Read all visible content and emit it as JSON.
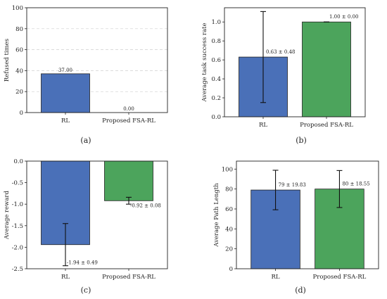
{
  "chart_data": [
    {
      "type": "bar",
      "panel_label": "(a)",
      "categories": [
        "RL",
        "Proposed FSA-RL"
      ],
      "values": [
        37.0,
        0.0
      ],
      "value_labels": [
        "37.00",
        "0.00"
      ],
      "ylabel": "Refused times",
      "ylim": [
        0,
        100
      ],
      "yticks": [
        0,
        20,
        40,
        60,
        80,
        100
      ],
      "ytick_labels": [
        "0",
        "20",
        "40",
        "60",
        "80",
        "100"
      ],
      "grid": true,
      "colors": [
        "#4a70b8",
        "#4ca45c"
      ]
    },
    {
      "type": "bar",
      "panel_label": "(b)",
      "categories": [
        "RL",
        "Proposed FSA-RL"
      ],
      "values": [
        0.63,
        1.0
      ],
      "errors": [
        0.48,
        0.0
      ],
      "value_labels": [
        "0.63 ± 0.48",
        "1.00 ± 0.00"
      ],
      "ylabel": "Average task success rate",
      "ylim": [
        0,
        1.15
      ],
      "yticks": [
        0,
        0.2,
        0.4,
        0.6,
        0.8,
        1.0
      ],
      "ytick_labels": [
        "0.0",
        "0.2",
        "0.4",
        "0.6",
        "0.8",
        "1.0"
      ],
      "grid": false,
      "colors": [
        "#4a70b8",
        "#4ca45c"
      ]
    },
    {
      "type": "bar",
      "panel_label": "(c)",
      "categories": [
        "RL",
        "Proposed FSA-RL"
      ],
      "values": [
        -1.94,
        -0.92
      ],
      "errors": [
        0.49,
        0.08
      ],
      "value_labels": [
        "-1.94 ± 0.49",
        "-0.92 ± 0.08"
      ],
      "ylabel": "Average reward",
      "ylim": [
        -2.5,
        0
      ],
      "yticks": [
        -2.5,
        -2.0,
        -1.5,
        -1.0,
        -0.5,
        0.0
      ],
      "ytick_labels": [
        "-2.5",
        "-2.0",
        "-1.5",
        "-1.0",
        "-0.5",
        "0.0"
      ],
      "grid": false,
      "colors": [
        "#4a70b8",
        "#4ca45c"
      ]
    },
    {
      "type": "bar",
      "panel_label": "(d)",
      "categories": [
        "RL",
        "Proposed FSA-RL"
      ],
      "values": [
        79,
        80
      ],
      "errors": [
        19.83,
        18.55
      ],
      "value_labels": [
        "79 ± 19.83",
        "80 ± 18.55"
      ],
      "ylabel": "Average Path Length",
      "ylim": [
        0,
        108
      ],
      "yticks": [
        0,
        20,
        40,
        60,
        80,
        100
      ],
      "ytick_labels": [
        "0",
        "20",
        "40",
        "60",
        "80",
        "100"
      ],
      "grid": false,
      "colors": [
        "#4a70b8",
        "#4ca45c"
      ]
    }
  ]
}
